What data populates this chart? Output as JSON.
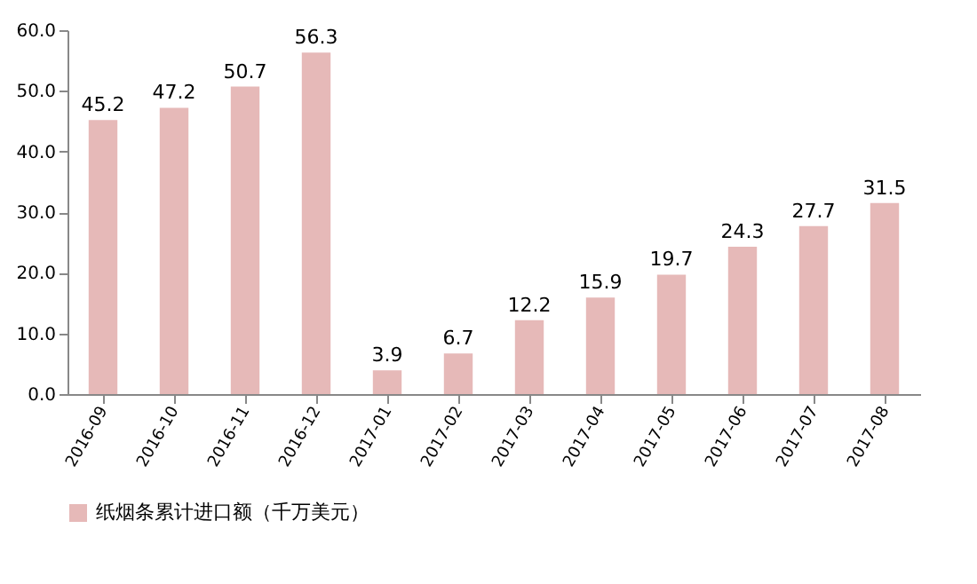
{
  "chart_data": {
    "type": "bar",
    "categories": [
      "2016-09",
      "2016-10",
      "2016-11",
      "2016-12",
      "2017-01",
      "2017-02",
      "2017-03",
      "2017-04",
      "2017-05",
      "2017-06",
      "2017-07",
      "2017-08"
    ],
    "series": [
      {
        "name": "纸烟条累计进口额（千万美元）",
        "color": "#e6b9b8",
        "values": [
          45.2,
          47.2,
          50.7,
          56.3,
          3.9,
          6.7,
          12.2,
          15.9,
          19.7,
          24.3,
          27.7,
          31.5
        ]
      }
    ],
    "ylim": [
      0,
      60
    ],
    "yticks": [
      {
        "value": 0,
        "label": "0.0"
      },
      {
        "value": 10,
        "label": "10.0"
      },
      {
        "value": 20,
        "label": "20.0"
      },
      {
        "value": 30,
        "label": "30.0"
      },
      {
        "value": 40,
        "label": "40.0"
      },
      {
        "value": 50,
        "label": "50.0"
      },
      {
        "value": 60,
        "label": "60.0"
      }
    ],
    "data_labels": true,
    "grid": false,
    "legend": "bottom"
  }
}
